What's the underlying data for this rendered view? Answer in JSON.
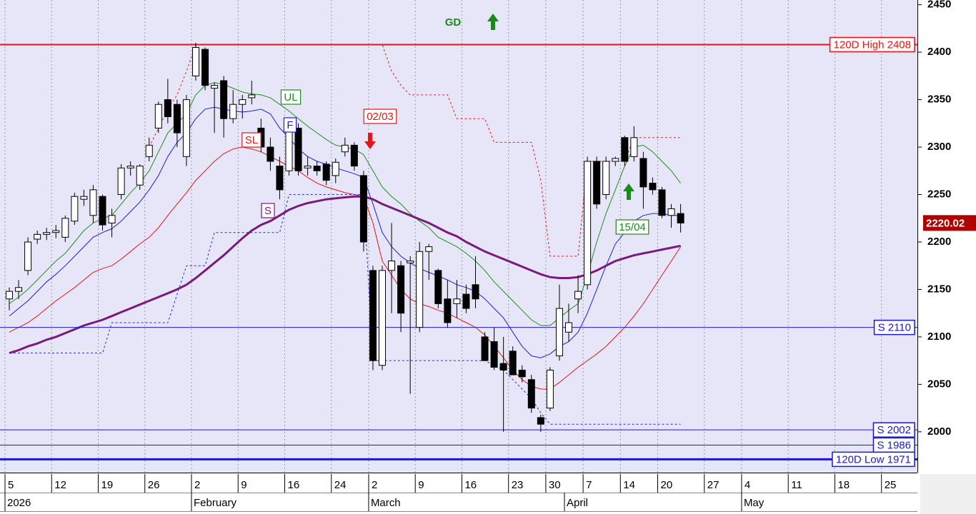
{
  "chart_data": {
    "type": "candlestick",
    "ylim": [
      1957,
      2455
    ],
    "yticks": [
      2000,
      2050,
      2100,
      2150,
      2200,
      2250,
      2300,
      2350,
      2400,
      2450
    ],
    "grid": true,
    "categories": [
      "5",
      null,
      null,
      null,
      null,
      "12",
      null,
      null,
      null,
      null,
      "19",
      null,
      null,
      null,
      null,
      "26",
      null,
      null,
      null,
      null,
      "2",
      null,
      null,
      null,
      null,
      "9",
      null,
      null,
      null,
      null,
      "16",
      null,
      null,
      null,
      null,
      "24",
      null,
      null,
      null,
      "2",
      null,
      null,
      null,
      null,
      "9",
      null,
      null,
      null,
      null,
      "16",
      null,
      null,
      null,
      null,
      "23",
      null,
      null,
      null,
      "30",
      null,
      null,
      null,
      "7",
      null,
      null,
      null,
      "14",
      null,
      null,
      null,
      "20",
      null,
      null,
      null,
      null,
      "27",
      null,
      null,
      null,
      "4",
      null,
      null,
      null,
      null,
      "11",
      null,
      null,
      null,
      null,
      "18",
      null,
      null,
      null,
      null,
      "25",
      null,
      null,
      null
    ],
    "months": [
      "2026",
      null,
      null,
      null,
      null,
      null,
      null,
      null,
      null,
      null,
      null,
      null,
      null,
      null,
      null,
      null,
      null,
      null,
      null,
      null,
      "February",
      null,
      null,
      null,
      null,
      null,
      null,
      null,
      null,
      null,
      null,
      null,
      null,
      null,
      null,
      null,
      null,
      null,
      null,
      "March",
      null,
      null,
      null,
      null,
      null,
      null,
      null,
      null,
      null,
      null,
      null,
      null,
      null,
      null,
      null,
      null,
      null,
      null,
      null,
      null,
      "April",
      null,
      null,
      null,
      null,
      null,
      null,
      null,
      null,
      null,
      null,
      null,
      null,
      null,
      null,
      null,
      null,
      null,
      null,
      "May",
      null,
      null,
      null,
      null,
      null,
      null,
      null,
      null,
      null,
      null,
      null,
      null,
      null,
      null,
      null,
      null,
      null,
      null
    ],
    "candles": {
      "up_color": "#ffffff",
      "down_color": "#000000",
      "open": [
        2140,
        2148,
        2170,
        2203,
        2208,
        2210,
        2205,
        2222,
        2245,
        2228,
        2248,
        2220,
        2250,
        2278,
        2260,
        2290,
        2320,
        2350,
        2345,
        2290,
        2375,
        2403,
        2362,
        2370,
        2330,
        2345,
        2352,
        2320,
        2300,
        2280,
        2275,
        2320,
        2278,
        2280,
        2282,
        2270,
        2295,
        2302,
        2270,
        2170,
        2070,
        2170,
        2175,
        2178,
        2110,
        2190,
        2170,
        2140,
        2135,
        2145,
        2155,
        2100,
        2095,
        2072,
        2085,
        2065,
        2055,
        2015,
        2025,
        2080,
        2105,
        2140,
        2155,
        2285,
        2250,
        2285,
        2310,
        2290,
        2288,
        2262,
        2255,
        2228,
        2230,
        null,
        null,
        null,
        null,
        null,
        null,
        null,
        null,
        null,
        null,
        null,
        null,
        null,
        null,
        null,
        null,
        null,
        null,
        null,
        null,
        null,
        null,
        null,
        null,
        null
      ],
      "high": [
        2152,
        2160,
        2205,
        2212,
        2215,
        2218,
        2228,
        2252,
        2255,
        2260,
        2250,
        2235,
        2282,
        2285,
        2282,
        2310,
        2348,
        2372,
        2350,
        2355,
        2410,
        2405,
        2368,
        2375,
        2360,
        2355,
        2370,
        2330,
        2310,
        2290,
        2330,
        2325,
        2290,
        2285,
        2285,
        2288,
        2310,
        2305,
        2275,
        2175,
        2175,
        2220,
        2180,
        2185,
        2200,
        2198,
        2172,
        2160,
        2160,
        2155,
        2185,
        2105,
        2110,
        2100,
        2090,
        2070,
        2060,
        2018,
        2068,
        2155,
        2135,
        2165,
        2290,
        2290,
        2290,
        2290,
        2312,
        2322,
        2295,
        2268,
        2258,
        2240,
        2240,
        null,
        null,
        null,
        null,
        null,
        null,
        null,
        null,
        null,
        null,
        null,
        null,
        null,
        null,
        null,
        null,
        null,
        null,
        null,
        null,
        null,
        null,
        null,
        null,
        null
      ],
      "low": [
        2128,
        2140,
        2165,
        2198,
        2202,
        2204,
        2200,
        2218,
        2238,
        2220,
        2212,
        2205,
        2245,
        2270,
        2255,
        2285,
        2315,
        2325,
        2300,
        2280,
        2370,
        2360,
        2315,
        2310,
        2325,
        2330,
        2345,
        2295,
        2275,
        2245,
        2270,
        2270,
        2270,
        2270,
        2260,
        2262,
        2290,
        2275,
        2190,
        2065,
        2065,
        2125,
        2105,
        2040,
        2105,
        2160,
        2130,
        2110,
        2120,
        2125,
        2130,
        2075,
        2065,
        2000,
        2060,
        2052,
        2020,
        2000,
        2022,
        2075,
        2095,
        2125,
        2150,
        2235,
        2245,
        2280,
        2280,
        2285,
        2235,
        2250,
        2225,
        2215,
        2210,
        null,
        null,
        null,
        null,
        null,
        null,
        null,
        null,
        null,
        null,
        null,
        null,
        null,
        null,
        null,
        null,
        null,
        null,
        null,
        null,
        null,
        null,
        null,
        null,
        null
      ],
      "close": [
        2148,
        2152,
        2200,
        2208,
        2210,
        2212,
        2225,
        2248,
        2248,
        2255,
        2218,
        2228,
        2278,
        2280,
        2280,
        2302,
        2345,
        2332,
        2315,
        2350,
        2405,
        2365,
        2365,
        2330,
        2345,
        2350,
        2355,
        2300,
        2285,
        2255,
        2325,
        2275,
        2280,
        2275,
        2265,
        2284,
        2302,
        2280,
        2200,
        2075,
        2170,
        2180,
        2125,
        2180,
        2190,
        2195,
        2135,
        2115,
        2140,
        2130,
        2140,
        2075,
        2068,
        2065,
        2060,
        2058,
        2025,
        2008,
        2065,
        2130,
        2115,
        2148,
        2285,
        2240,
        2285,
        2288,
        2285,
        2310,
        2258,
        2255,
        2228,
        2235,
        2220.02,
        null,
        null,
        null,
        null,
        null,
        null,
        null,
        null,
        null,
        null,
        null,
        null,
        null,
        null,
        null,
        null,
        null,
        null,
        null,
        null,
        null,
        null,
        null,
        null,
        null
      ]
    },
    "series": [
      {
        "name": "UL",
        "color": "#1f8f1f",
        "width": 1,
        "values": [
          2135,
          2142,
          2150,
          2160,
          2170,
          2180,
          2188,
          2200,
          2212,
          2220,
          2225,
          2228,
          2240,
          2252,
          2262,
          2275,
          2295,
          2315,
          2325,
          2335,
          2355,
          2365,
          2368,
          2366,
          2362,
          2358,
          2356,
          2355,
          2352,
          2345,
          2338,
          2330,
          2322,
          2315,
          2308,
          2302,
          2300,
          2298,
          2292,
          2275,
          2258,
          2248,
          2240,
          2230,
          2222,
          2215,
          2205,
          2200,
          2195,
          2188,
          2180,
          2170,
          2158,
          2148,
          2138,
          2128,
          2118,
          2112,
          2112,
          2120,
          2128,
          2135,
          2165,
          2200,
          2230,
          2255,
          2280,
          2300,
          2302,
          2295,
          2285,
          2275,
          2262,
          null,
          null,
          null,
          null,
          null,
          null,
          null,
          null,
          null,
          null,
          null,
          null,
          null,
          null,
          null,
          null,
          null,
          null,
          null,
          null,
          null,
          null,
          null,
          null,
          null
        ]
      },
      {
        "name": "F",
        "color": "#1f1fd8",
        "width": 1,
        "values": [
          2122,
          2130,
          2138,
          2148,
          2158,
          2166,
          2175,
          2185,
          2195,
          2205,
          2210,
          2214,
          2222,
          2232,
          2242,
          2255,
          2270,
          2290,
          2305,
          2315,
          2330,
          2340,
          2342,
          2340,
          2338,
          2337,
          2338,
          2340,
          2335,
          2320,
          2310,
          2298,
          2290,
          2285,
          2282,
          2278,
          2275,
          2272,
          2268,
          2240,
          2210,
          2195,
          2185,
          2178,
          2172,
          2168,
          2164,
          2160,
          2155,
          2152,
          2148,
          2140,
          2130,
          2120,
          2105,
          2090,
          2080,
          2078,
          2082,
          2090,
          2095,
          2105,
          2125,
          2150,
          2175,
          2198,
          2210,
          2222,
          2228,
          2230,
          2230,
          2228,
          2228,
          null,
          null,
          null,
          null,
          null,
          null,
          null,
          null,
          null,
          null,
          null,
          null,
          null,
          null,
          null,
          null,
          null,
          null,
          null,
          null,
          null,
          null,
          null,
          null,
          null
        ]
      },
      {
        "name": "SL",
        "color": "#e01818",
        "width": 1,
        "values": [
          2105,
          2110,
          2115,
          2122,
          2130,
          2138,
          2145,
          2152,
          2160,
          2168,
          2172,
          2175,
          2182,
          2190,
          2198,
          2205,
          2215,
          2228,
          2240,
          2252,
          2265,
          2275,
          2285,
          2293,
          2298,
          2300,
          2298,
          2295,
          2290,
          2285,
          2280,
          2275,
          2268,
          2262,
          2258,
          2255,
          2252,
          2250,
          2248,
          2220,
          2180,
          2165,
          2150,
          2140,
          2135,
          2132,
          2128,
          2125,
          2120,
          2115,
          2110,
          2102,
          2090,
          2078,
          2065,
          2055,
          2048,
          2045,
          2045,
          2052,
          2060,
          2068,
          2075,
          2082,
          2090,
          2100,
          2110,
          2122,
          2135,
          2150,
          2165,
          2180,
          2195,
          null,
          null,
          null,
          null,
          null,
          null,
          null,
          null,
          null,
          null,
          null,
          null,
          null,
          null,
          null,
          null,
          null,
          null,
          null,
          null,
          null,
          null,
          null,
          null,
          null
        ]
      },
      {
        "name": "S",
        "color": "#7a1a7a",
        "width": 3,
        "values": [
          2083,
          2086,
          2090,
          2093,
          2097,
          2100,
          2104,
          2108,
          2112,
          2115,
          2118,
          2122,
          2126,
          2130,
          2134,
          2138,
          2142,
          2146,
          2150,
          2155,
          2162,
          2170,
          2178,
          2186,
          2195,
          2204,
          2212,
          2218,
          2222,
          2228,
          2234,
          2238,
          2241,
          2243,
          2245,
          2246,
          2247,
          2248,
          2248,
          2245,
          2240,
          2236,
          2232,
          2228,
          2224,
          2220,
          2215,
          2210,
          2206,
          2200,
          2195,
          2190,
          2186,
          2182,
          2178,
          2174,
          2170,
          2166,
          2163,
          2162,
          2162,
          2163,
          2166,
          2170,
          2175,
          2180,
          2183,
          2186,
          2188,
          2190,
          2192,
          2194,
          2196,
          null,
          null,
          null,
          null,
          null,
          null,
          null,
          null,
          null,
          null,
          null,
          null,
          null,
          null,
          null,
          null,
          null,
          null,
          null,
          null,
          null,
          null,
          null,
          null,
          null
        ]
      },
      {
        "color": "#2a2ad8",
        "width": 1,
        "dashed": true,
        "values": [
          2083,
          2083,
          2083,
          2083,
          2083,
          2083,
          2083,
          2083,
          2083,
          2083,
          2083,
          2115,
          2115,
          2115,
          2115,
          2115,
          2115,
          2115,
          2145,
          2175,
          2175,
          2175,
          2210,
          2210,
          2210,
          2210,
          2210,
          2210,
          2210,
          2210,
          2250,
          2250,
          2250,
          2250,
          2250,
          2250,
          2250,
          2250,
          2250,
          2075,
          2075,
          2075,
          2075,
          2075,
          2075,
          2075,
          2075,
          2075,
          2075,
          2075,
          2075,
          2075,
          2070,
          2065,
          2055,
          2045,
          2035,
          2020,
          2008,
          2008,
          2008,
          2008,
          2008,
          2008,
          2008,
          2008,
          2008,
          2008,
          2008,
          2008,
          2008,
          2008,
          2008,
          null,
          null,
          null,
          null,
          null,
          null,
          null,
          null,
          null,
          null,
          null,
          null,
          null,
          null,
          null,
          null,
          null,
          null,
          null,
          null,
          null,
          null,
          null,
          null,
          null
        ]
      },
      {
        "color": "#e02020",
        "width": 1,
        "dashed": true,
        "values": [
          null,
          null,
          null,
          null,
          null,
          null,
          null,
          null,
          null,
          null,
          null,
          null,
          null,
          null,
          null,
          2300,
          2320,
          2340,
          2355,
          2380,
          2408,
          2408,
          2408,
          2408,
          2408,
          2408,
          2408,
          2408,
          2408,
          2408,
          2408,
          2408,
          2408,
          2408,
          2408,
          2408,
          2408,
          2408,
          2408,
          2408,
          2408,
          2380,
          2365,
          2355,
          2355,
          2355,
          2355,
          2355,
          2330,
          2330,
          2330,
          2330,
          2305,
          2305,
          2305,
          2305,
          2305,
          2265,
          2185,
          2185,
          2185,
          2185,
          2285,
          2285,
          2285,
          2285,
          2285,
          2310,
          2310,
          2310,
          2310,
          2310,
          2310,
          null,
          null,
          null,
          null,
          null,
          null,
          null,
          null,
          null,
          null,
          null,
          null,
          null,
          null,
          null,
          null,
          null,
          null,
          null,
          null,
          null,
          null,
          null,
          null,
          null
        ]
      }
    ],
    "hlines": [
      {
        "label": "120D High 2408",
        "value": 2408,
        "color": "#ee1111",
        "width": 2
      },
      {
        "label": "S 2110",
        "value": 2110,
        "color": "#1a1ad0",
        "width": 1
      },
      {
        "label": "S 2002",
        "value": 2002,
        "color": "#1a1ad0",
        "width": 1
      },
      {
        "label": "S 1986",
        "value": 1986,
        "color": "#1a1ad0",
        "width": 1
      },
      {
        "label": "120D Low 1971",
        "value": 1971,
        "color": "#1a1ad0",
        "width": 3
      }
    ],
    "signal": {
      "text": "GD",
      "color": "#1a8a1a"
    },
    "markers": [
      {
        "text": "02/03",
        "color": "#e01818",
        "direction": "down"
      },
      {
        "text": "15/04",
        "color": "#1a8a1a",
        "direction": "up"
      }
    ],
    "last_price": 2220.02
  }
}
